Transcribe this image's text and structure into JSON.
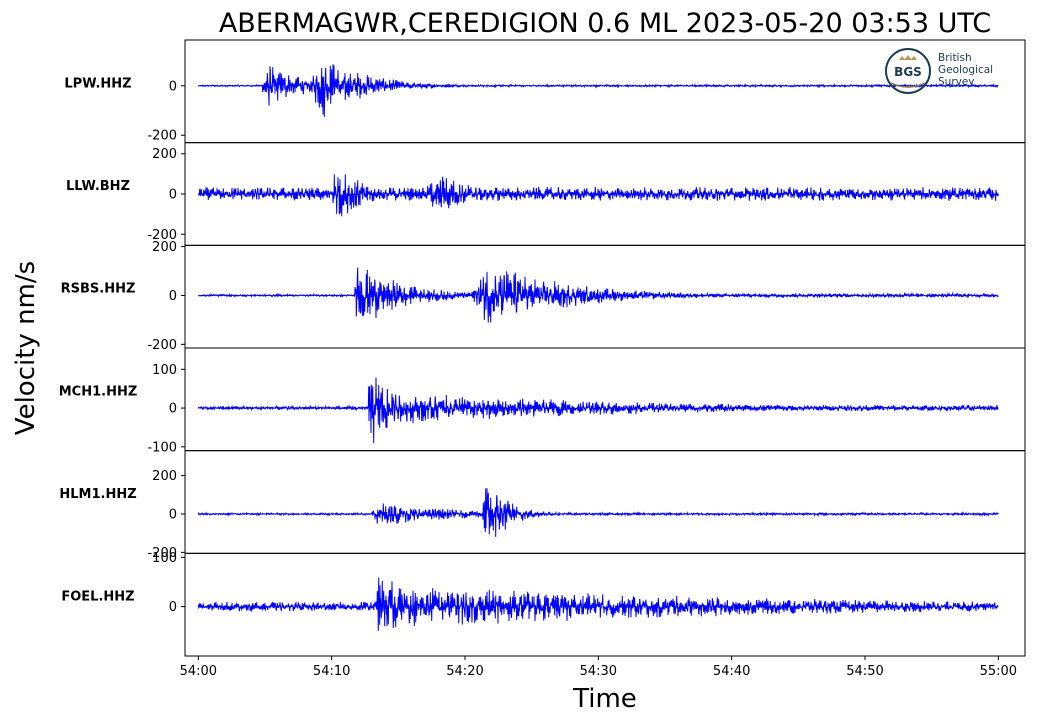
{
  "chart_data": {
    "type": "line",
    "title": "ABERMAGWR,CEREDIGION 0.6 ML   2023-05-20 03:53 UTC",
    "xlabel": "Time",
    "ylabel": "Velocity nm/s",
    "x_ticks": [
      "54:00",
      "54:10",
      "54:20",
      "54:30",
      "54:40",
      "54:50",
      "55:00"
    ],
    "x_range_seconds": [
      -1.0,
      62.0
    ],
    "series_color": "#0000ff",
    "logo": {
      "abbr": "BGS",
      "lines": [
        "British",
        "Geological",
        "Survey"
      ]
    },
    "traces": [
      {
        "name": "LPW.HHZ",
        "ylim": [
          -230,
          185
        ],
        "y_ticks": [
          {
            "v": 0,
            "label": "0"
          },
          {
            "v": -200,
            "label": "-200"
          }
        ],
        "noise": 3,
        "coda_floor": 4,
        "events": [
          {
            "t": 4.8,
            "amp": 120,
            "tau": 2.5,
            "rise": 0.3
          },
          {
            "t": 8.5,
            "amp": 175,
            "tau": 3.2,
            "rise": 1.0
          }
        ]
      },
      {
        "name": "LLW.BHZ",
        "ylim": [
          -255,
          255
        ],
        "y_ticks": [
          {
            "v": 200,
            "label": "200"
          },
          {
            "v": 0,
            "label": "0"
          },
          {
            "v": -200,
            "label": "-200"
          }
        ],
        "noise": 35,
        "coda_floor": 0,
        "events": [
          {
            "t": 10.0,
            "amp": 200,
            "tau": 2.0,
            "rise": 0.3
          },
          {
            "t": 17.0,
            "amp": 150,
            "tau": 3.0,
            "rise": 1.2
          }
        ]
      },
      {
        "name": "RSBS.HHZ",
        "ylim": [
          -215,
          205
        ],
        "y_ticks": [
          {
            "v": 200,
            "label": "200"
          },
          {
            "v": 0,
            "label": "0"
          },
          {
            "v": -200,
            "label": "-200"
          }
        ],
        "noise": 4,
        "coda_floor": 8,
        "events": [
          {
            "t": 11.7,
            "amp": 150,
            "tau": 3.5,
            "rise": 0.3
          },
          {
            "t": 20.5,
            "amp": 170,
            "tau": 6.0,
            "rise": 1.5
          }
        ]
      },
      {
        "name": "MCH1.HHZ",
        "ylim": [
          -110,
          155
        ],
        "y_ticks": [
          {
            "v": 100,
            "label": "100"
          },
          {
            "v": 0,
            "label": "0"
          },
          {
            "v": -100,
            "label": "-100"
          }
        ],
        "noise": 5,
        "coda_floor": 8,
        "events": [
          {
            "t": 12.7,
            "amp": 130,
            "tau": 2.0,
            "rise": 0.2
          },
          {
            "t": 13.8,
            "amp": 45,
            "tau": 18.0,
            "rise": 2.0
          }
        ]
      },
      {
        "name": "HLM1.HHZ",
        "ylim": [
          -205,
          330
        ],
        "y_ticks": [
          {
            "v": 200,
            "label": "200"
          },
          {
            "v": 0,
            "label": "0"
          },
          {
            "v": -200,
            "label": "-200"
          }
        ],
        "noise": 5,
        "coda_floor": 6,
        "events": [
          {
            "t": 13.0,
            "amp": 75,
            "tau": 6.0,
            "rise": 0.6
          },
          {
            "t": 21.3,
            "amp": 270,
            "tau": 1.6,
            "rise": 0.2
          }
        ]
      },
      {
        "name": "FOEL.HHZ",
        "ylim": [
          -100,
          108
        ],
        "y_ticks": [
          {
            "v": 100,
            "label": "100"
          },
          {
            "v": 0,
            "label": "0"
          }
        ],
        "noise": 10,
        "coda_floor": 10,
        "events": [
          {
            "t": 13.3,
            "amp": 80,
            "tau": 3.0,
            "rise": 0.2
          },
          {
            "t": 14.5,
            "amp": 45,
            "tau": 30.0,
            "rise": 2.0
          }
        ]
      }
    ]
  }
}
